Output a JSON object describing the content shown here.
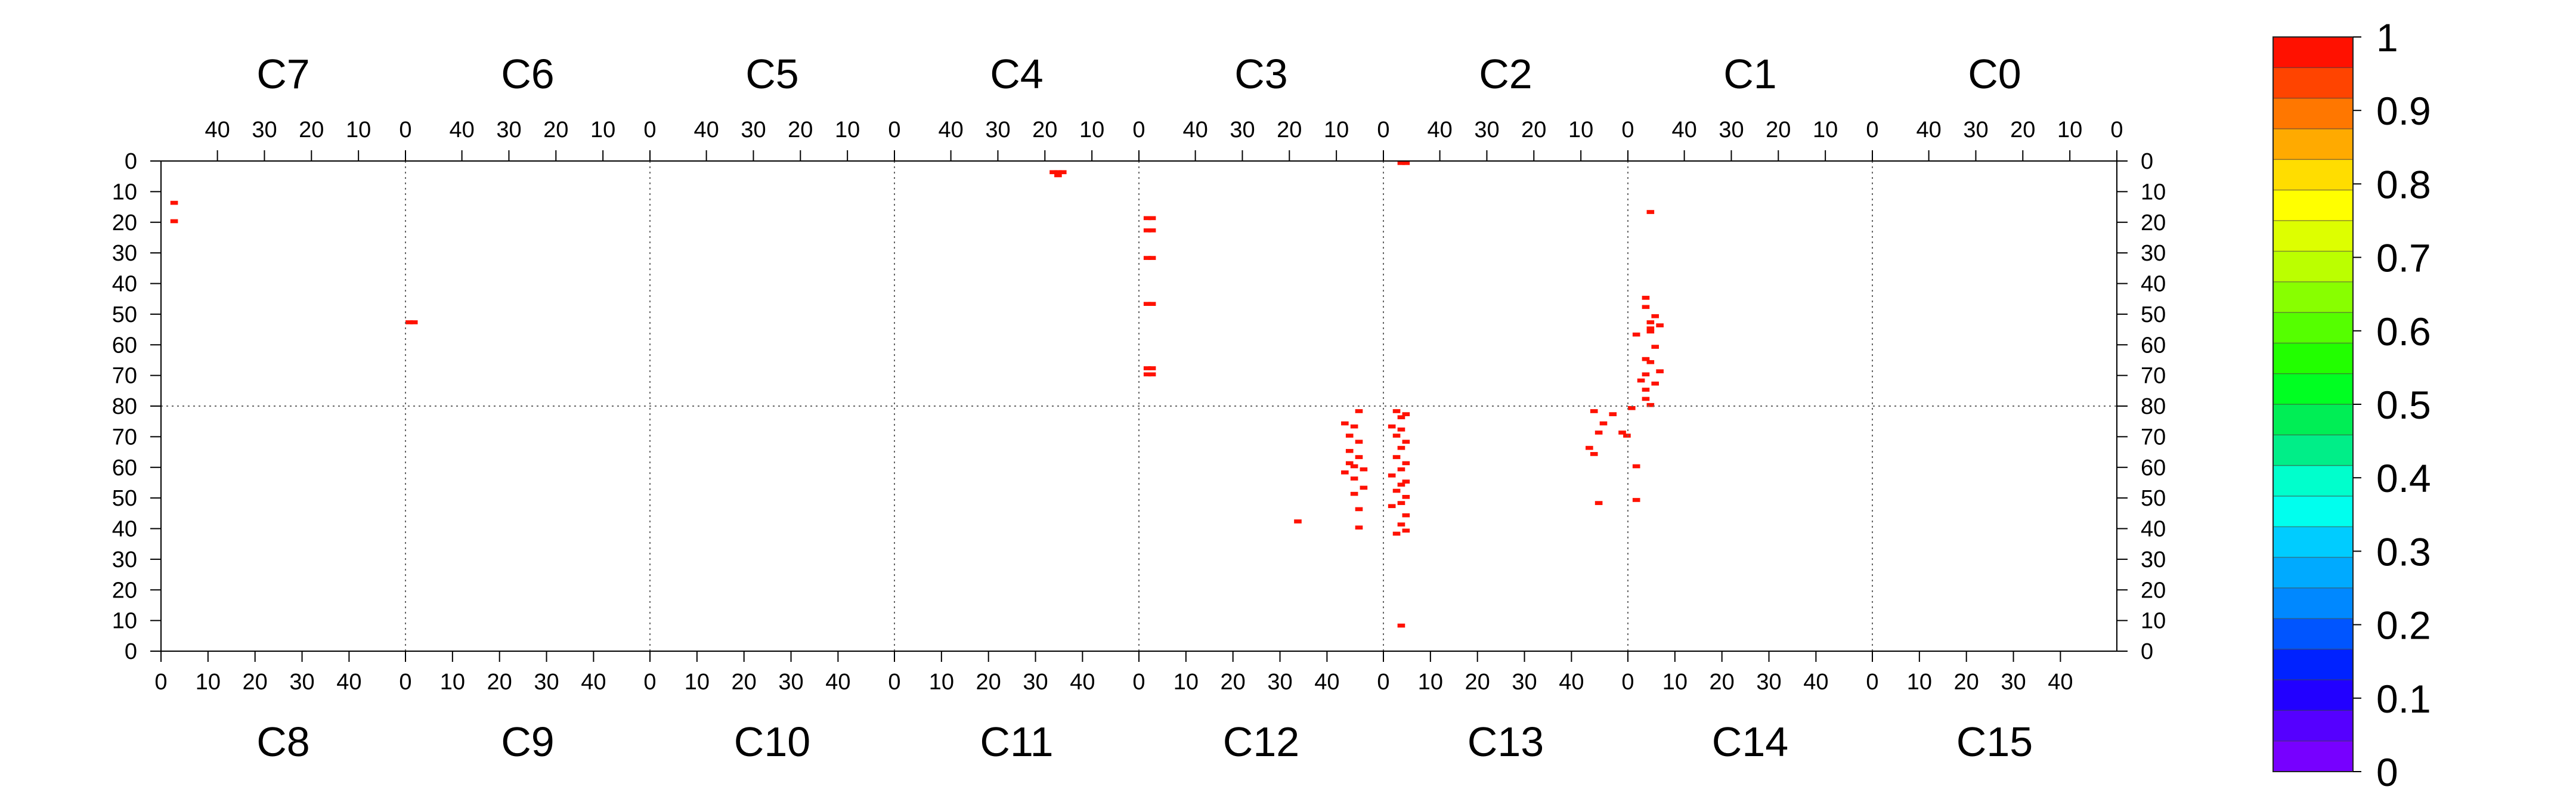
{
  "chart_data": {
    "type": "heatmap",
    "title": "",
    "top_chips": [
      "C7",
      "C6",
      "C5",
      "C4",
      "C3",
      "C2",
      "C1",
      "C0"
    ],
    "bottom_chips": [
      "C8",
      "C9",
      "C10",
      "C11",
      "C12",
      "C13",
      "C14",
      "C15"
    ],
    "top_col_tick_labels": [
      "40",
      "30",
      "20",
      "10",
      "0"
    ],
    "bottom_col_tick_labels": [
      "0",
      "10",
      "20",
      "30",
      "40"
    ],
    "top_row_tick_labels": [
      "0",
      "10",
      "20",
      "30",
      "40",
      "50",
      "60",
      "70",
      "80"
    ],
    "bottom_row_tick_labels": [
      "70",
      "60",
      "50",
      "40",
      "30",
      "20",
      "10",
      "0"
    ],
    "columns_per_chip": 52,
    "rows_per_half": 80,
    "grid": "chip boundaries dotted",
    "colorscale": {
      "min": 0,
      "max": 1,
      "tick_labels": [
        "0",
        "0.1",
        "0.2",
        "0.3",
        "0.4",
        "0.5",
        "0.6",
        "0.7",
        "0.8",
        "0.9",
        "1"
      ],
      "colors": [
        "#7700ff",
        "#5500ff",
        "#2200ff",
        "#0022ff",
        "#0055ff",
        "#0088ff",
        "#00aaff",
        "#00ccff",
        "#00ffee",
        "#00ffcc",
        "#00ee88",
        "#00ee55",
        "#00ff22",
        "#22ff00",
        "#55ff00",
        "#88ff00",
        "#bbff00",
        "#ddff00",
        "#ffff00",
        "#ffdd00",
        "#ffaa00",
        "#ff7700",
        "#ff4400",
        "#ff1100"
      ]
    },
    "hits": [
      {
        "chip": 7,
        "col": 49,
        "row": 13,
        "v": 1
      },
      {
        "chip": 7,
        "col": 49,
        "row": 19,
        "v": 1
      },
      {
        "chip": 6,
        "col": 51,
        "row": 52,
        "v": 1
      },
      {
        "chip": 6,
        "col": 50,
        "row": 52,
        "v": 1
      },
      {
        "chip": 4,
        "col": 18,
        "row": 3,
        "v": 1
      },
      {
        "chip": 4,
        "col": 17,
        "row": 3,
        "v": 1
      },
      {
        "chip": 4,
        "col": 16,
        "row": 3,
        "v": 1
      },
      {
        "chip": 4,
        "col": 17,
        "row": 4,
        "v": 1
      },
      {
        "chip": 3,
        "col": 50,
        "row": 18,
        "v": 1
      },
      {
        "chip": 3,
        "col": 49,
        "row": 18,
        "v": 1
      },
      {
        "chip": 3,
        "col": 50,
        "row": 22,
        "v": 1
      },
      {
        "chip": 3,
        "col": 49,
        "row": 22,
        "v": 1
      },
      {
        "chip": 3,
        "col": 50,
        "row": 31,
        "v": 1
      },
      {
        "chip": 3,
        "col": 49,
        "row": 31,
        "v": 1
      },
      {
        "chip": 3,
        "col": 50,
        "row": 46,
        "v": 1
      },
      {
        "chip": 3,
        "col": 49,
        "row": 46,
        "v": 1
      },
      {
        "chip": 3,
        "col": 50,
        "row": 67,
        "v": 1
      },
      {
        "chip": 3,
        "col": 49,
        "row": 67,
        "v": 1
      },
      {
        "chip": 3,
        "col": 50,
        "row": 69,
        "v": 1
      },
      {
        "chip": 3,
        "col": 49,
        "row": 69,
        "v": 1
      },
      {
        "chip": 2,
        "col": 48,
        "row": 0,
        "v": 1
      },
      {
        "chip": 2,
        "col": 47,
        "row": 0,
        "v": 1
      },
      {
        "chip": 1,
        "col": 47,
        "row": 16,
        "v": 1
      },
      {
        "chip": 1,
        "col": 48,
        "row": 44,
        "v": 1
      },
      {
        "chip": 1,
        "col": 48,
        "row": 47,
        "v": 1
      },
      {
        "chip": 1,
        "col": 46,
        "row": 50,
        "v": 1
      },
      {
        "chip": 1,
        "col": 47,
        "row": 52,
        "v": 1
      },
      {
        "chip": 1,
        "col": 45,
        "row": 53,
        "v": 1
      },
      {
        "chip": 1,
        "col": 47,
        "row": 54,
        "v": 1
      },
      {
        "chip": 1,
        "col": 47,
        "row": 55,
        "v": 1
      },
      {
        "chip": 1,
        "col": 50,
        "row": 56,
        "v": 1
      },
      {
        "chip": 1,
        "col": 46,
        "row": 60,
        "v": 1
      },
      {
        "chip": 1,
        "col": 48,
        "row": 64,
        "v": 1
      },
      {
        "chip": 1,
        "col": 47,
        "row": 65,
        "v": 1
      },
      {
        "chip": 1,
        "col": 45,
        "row": 68,
        "v": 1
      },
      {
        "chip": 1,
        "col": 48,
        "row": 69,
        "v": 1
      },
      {
        "chip": 1,
        "col": 49,
        "row": 71,
        "v": 1
      },
      {
        "chip": 1,
        "col": 46,
        "row": 72,
        "v": 1
      },
      {
        "chip": 1,
        "col": 48,
        "row": 74,
        "v": 1
      },
      {
        "chip": 1,
        "col": 48,
        "row": 77,
        "v": 1
      },
      {
        "chip": 1,
        "col": 47,
        "row": 79,
        "v": 1
      },
      {
        "chip": 13,
        "col": 45,
        "row": 48,
        "v": 1
      },
      {
        "chip": 13,
        "col": 44,
        "row": 64,
        "v": 1
      },
      {
        "chip": 13,
        "col": 43,
        "row": 66,
        "v": 1
      },
      {
        "chip": 13,
        "col": 45,
        "row": 71,
        "v": 1
      },
      {
        "chip": 13,
        "col": 46,
        "row": 74,
        "v": 1
      },
      {
        "chip": 13,
        "col": 44,
        "row": 78,
        "v": 1
      },
      {
        "chip": 13,
        "col": 48,
        "row": 77,
        "v": 1
      },
      {
        "chip": 13,
        "col": 51,
        "row": 70,
        "v": 1
      },
      {
        "chip": 13,
        "col": 50,
        "row": 71,
        "v": 1
      },
      {
        "chip": 12,
        "col": 46,
        "row": 78,
        "v": 1
      },
      {
        "chip": 12,
        "col": 43,
        "row": 74,
        "v": 1
      },
      {
        "chip": 12,
        "col": 45,
        "row": 73,
        "v": 1
      },
      {
        "chip": 12,
        "col": 44,
        "row": 70,
        "v": 1
      },
      {
        "chip": 12,
        "col": 46,
        "row": 68,
        "v": 1
      },
      {
        "chip": 12,
        "col": 44,
        "row": 65,
        "v": 1
      },
      {
        "chip": 12,
        "col": 46,
        "row": 63,
        "v": 1
      },
      {
        "chip": 12,
        "col": 44,
        "row": 61,
        "v": 1
      },
      {
        "chip": 12,
        "col": 45,
        "row": 60,
        "v": 1
      },
      {
        "chip": 12,
        "col": 47,
        "row": 59,
        "v": 1
      },
      {
        "chip": 12,
        "col": 43,
        "row": 58,
        "v": 1
      },
      {
        "chip": 12,
        "col": 45,
        "row": 56,
        "v": 1
      },
      {
        "chip": 12,
        "col": 47,
        "row": 53,
        "v": 1
      },
      {
        "chip": 12,
        "col": 45,
        "row": 51,
        "v": 1
      },
      {
        "chip": 12,
        "col": 46,
        "row": 46,
        "v": 1
      },
      {
        "chip": 12,
        "col": 46,
        "row": 40,
        "v": 1
      },
      {
        "chip": 12,
        "col": 33,
        "row": 42,
        "v": 1
      },
      {
        "chip": 13,
        "col": 2,
        "row": 78,
        "v": 1
      },
      {
        "chip": 13,
        "col": 4,
        "row": 77,
        "v": 1
      },
      {
        "chip": 13,
        "col": 3,
        "row": 76,
        "v": 1
      },
      {
        "chip": 13,
        "col": 1,
        "row": 73,
        "v": 1
      },
      {
        "chip": 13,
        "col": 3,
        "row": 72,
        "v": 1
      },
      {
        "chip": 13,
        "col": 2,
        "row": 70,
        "v": 1
      },
      {
        "chip": 13,
        "col": 4,
        "row": 68,
        "v": 1
      },
      {
        "chip": 13,
        "col": 3,
        "row": 66,
        "v": 1
      },
      {
        "chip": 13,
        "col": 2,
        "row": 63,
        "v": 1
      },
      {
        "chip": 13,
        "col": 4,
        "row": 61,
        "v": 1
      },
      {
        "chip": 13,
        "col": 3,
        "row": 59,
        "v": 1
      },
      {
        "chip": 13,
        "col": 1,
        "row": 57,
        "v": 1
      },
      {
        "chip": 13,
        "col": 4,
        "row": 55,
        "v": 1
      },
      {
        "chip": 13,
        "col": 3,
        "row": 54,
        "v": 1
      },
      {
        "chip": 13,
        "col": 2,
        "row": 52,
        "v": 1
      },
      {
        "chip": 13,
        "col": 4,
        "row": 50,
        "v": 1
      },
      {
        "chip": 13,
        "col": 3,
        "row": 48,
        "v": 1
      },
      {
        "chip": 13,
        "col": 1,
        "row": 47,
        "v": 1
      },
      {
        "chip": 13,
        "col": 4,
        "row": 44,
        "v": 1
      },
      {
        "chip": 13,
        "col": 3,
        "row": 41,
        "v": 1
      },
      {
        "chip": 13,
        "col": 4,
        "row": 39,
        "v": 1
      },
      {
        "chip": 13,
        "col": 2,
        "row": 38,
        "v": 1
      },
      {
        "chip": 13,
        "col": 3,
        "row": 8,
        "v": 1
      },
      {
        "chip": 14,
        "col": 1,
        "row": 60,
        "v": 1
      },
      {
        "chip": 14,
        "col": 1,
        "row": 49,
        "v": 1
      },
      {
        "chip": 14,
        "col": 0,
        "row": 79,
        "v": 1
      }
    ]
  }
}
